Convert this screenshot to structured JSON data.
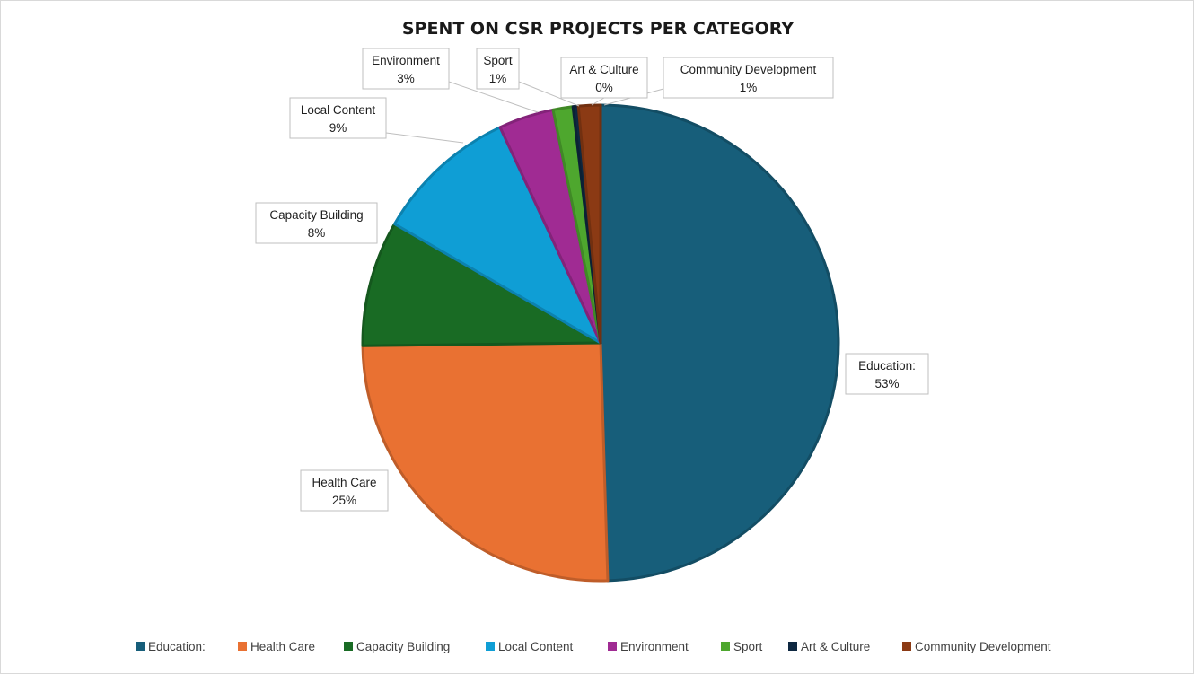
{
  "chart_data": {
    "type": "pie",
    "title": "SPENT ON CSR PROJECTS PER CATEGORY",
    "slices": [
      {
        "name": "Education:",
        "value": 53,
        "label": "53%",
        "color": "#175E7A"
      },
      {
        "name": "Health Care",
        "value": 25,
        "label": "25%",
        "color": "#E97132"
      },
      {
        "name": "Capacity Building",
        "value": 8,
        "label": "8%",
        "color": "#196B24"
      },
      {
        "name": "Local Content",
        "value": 9,
        "label": "9%",
        "color": "#0F9ED5"
      },
      {
        "name": "Environment",
        "value": 3,
        "label": "3%",
        "color": "#A02B93"
      },
      {
        "name": "Sport",
        "value": 1,
        "label": "1%",
        "color": "#4EA72E"
      },
      {
        "name": "Art & Culture",
        "value": 0,
        "label": "0%",
        "color": "#0E2841"
      },
      {
        "name": "Community Development",
        "value": 1,
        "label": "1%",
        "color": "#8B3A14"
      }
    ],
    "legend_position": "bottom"
  }
}
